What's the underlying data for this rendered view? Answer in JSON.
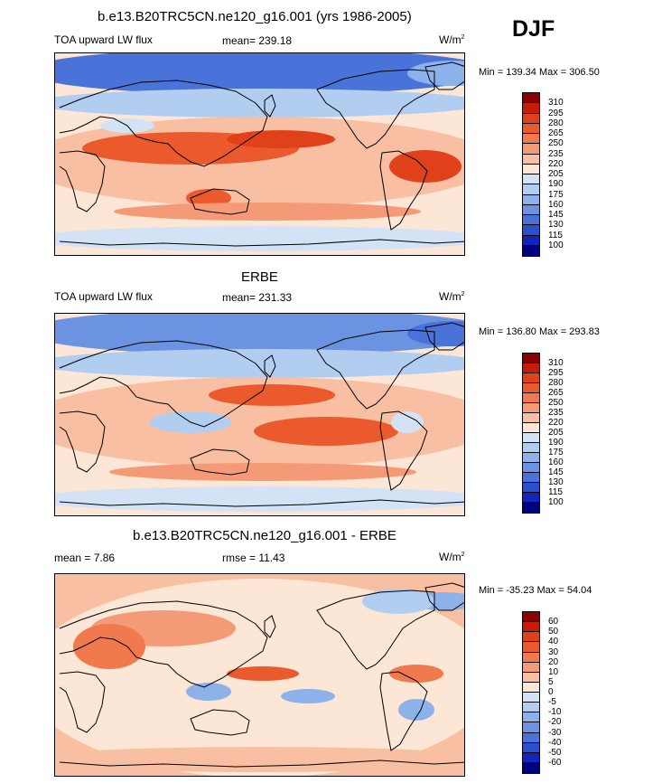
{
  "season": "DJF",
  "units_base": "W/m",
  "units_exp": "2",
  "panel1": {
    "title": "b.e13.B20TRC5CN.ne120_g16.001 (yrs 1986-2005)",
    "left": "TOA upward LW flux",
    "center": "mean= 239.18",
    "minmax": "Min = 139.34 Max = 306.50"
  },
  "panel2": {
    "title": "ERBE",
    "left": "TOA upward LW flux",
    "center": "mean= 231.33",
    "minmax": "Min = 136.80 Max = 293.83"
  },
  "panel3": {
    "title": "b.e13.B20TRC5CN.ne120_g16.001 - ERBE",
    "left": "mean =  7.86",
    "center": "rmse =  11.43",
    "minmax": "Min = -35.23 Max =  54.04"
  },
  "chart_data": [
    {
      "type": "heatmap",
      "title": "b.e13.B20TRC5CN.ne120_g16.001 (yrs 1986-2005)",
      "variable": "TOA upward LW flux",
      "units": "W/m2",
      "mean": 239.18,
      "min": 139.34,
      "max": 306.5,
      "levels": [
        310,
        295,
        280,
        265,
        250,
        235,
        220,
        205,
        190,
        175,
        160,
        145,
        130,
        115,
        100
      ],
      "colors": [
        "#8b0000",
        "#c41e0a",
        "#e0401a",
        "#ea5a2c",
        "#f07a4e",
        "#f59a76",
        "#f9bfa2",
        "#fce6d6",
        "#d3e3f5",
        "#b1cdf0",
        "#8db2ea",
        "#6b93e2",
        "#4a73da",
        "#2a4fcf",
        "#1325b8",
        "#000080"
      ]
    },
    {
      "type": "heatmap",
      "title": "ERBE",
      "variable": "TOA upward LW flux",
      "units": "W/m2",
      "mean": 231.33,
      "min": 136.8,
      "max": 293.83,
      "levels": [
        310,
        295,
        280,
        265,
        250,
        235,
        220,
        205,
        190,
        175,
        160,
        145,
        130,
        115,
        100
      ],
      "colors": [
        "#8b0000",
        "#c41e0a",
        "#e0401a",
        "#ea5a2c",
        "#f07a4e",
        "#f59a76",
        "#f9bfa2",
        "#fce6d6",
        "#d3e3f5",
        "#b1cdf0",
        "#8db2ea",
        "#6b93e2",
        "#4a73da",
        "#2a4fcf",
        "#1325b8",
        "#000080"
      ]
    },
    {
      "type": "heatmap",
      "title": "b.e13.B20TRC5CN.ne120_g16.001 - ERBE",
      "units": "W/m2",
      "mean": 7.86,
      "rmse": 11.43,
      "min": -35.23,
      "max": 54.04,
      "levels": [
        60,
        50,
        40,
        30,
        20,
        10,
        5,
        0,
        -5,
        -10,
        -20,
        -30,
        -40,
        -50,
        -60
      ],
      "colors": [
        "#8b0000",
        "#c41e0a",
        "#e0401a",
        "#ea5a2c",
        "#f07a4e",
        "#f59a76",
        "#f9bfa2",
        "#fce6d6",
        "#d3e3f5",
        "#b1cdf0",
        "#8db2ea",
        "#6b93e2",
        "#4a73da",
        "#2a4fcf",
        "#1325b8",
        "#000080"
      ]
    }
  ]
}
